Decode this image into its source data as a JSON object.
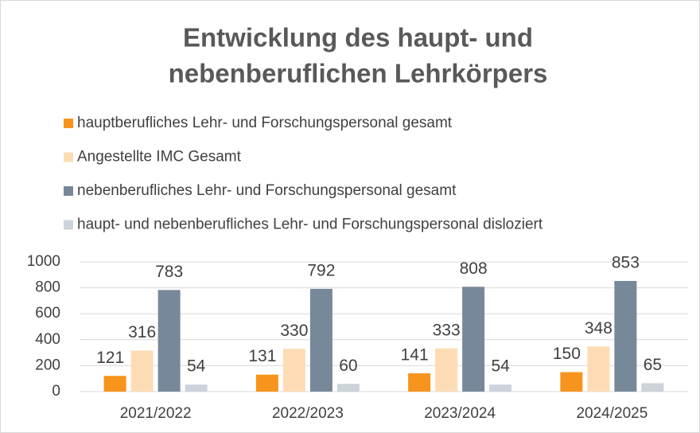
{
  "chart_data": {
    "type": "bar",
    "title": [
      "Entwicklung des haupt- und",
      "nebenberuflichen Lehrkörpers"
    ],
    "categories": [
      "2021/2022",
      "2022/2023",
      "2023/2024",
      "2024/2025"
    ],
    "series": [
      {
        "name": "hauptberufliches Lehr- und Forschungspersonal gesamt",
        "color": "#f7941d",
        "values": [
          121,
          131,
          141,
          150
        ]
      },
      {
        "name": "Angestellte IMC Gesamt",
        "color": "#fddcb5",
        "values": [
          316,
          330,
          333,
          348
        ]
      },
      {
        "name": "nebenberufliches Lehr- und Forschungspersonal gesamt",
        "color": "#77889a",
        "values": [
          783,
          792,
          808,
          853
        ]
      },
      {
        "name": "haupt- und nebenberufliches Lehr- und Forschungspersonal disloziert",
        "color": "#ccd3da",
        "values": [
          54,
          60,
          54,
          65
        ]
      }
    ],
    "ylim": [
      0,
      1000
    ],
    "yticks": [
      0,
      200,
      400,
      600,
      800,
      1000
    ],
    "grid": true,
    "legend": "top"
  }
}
